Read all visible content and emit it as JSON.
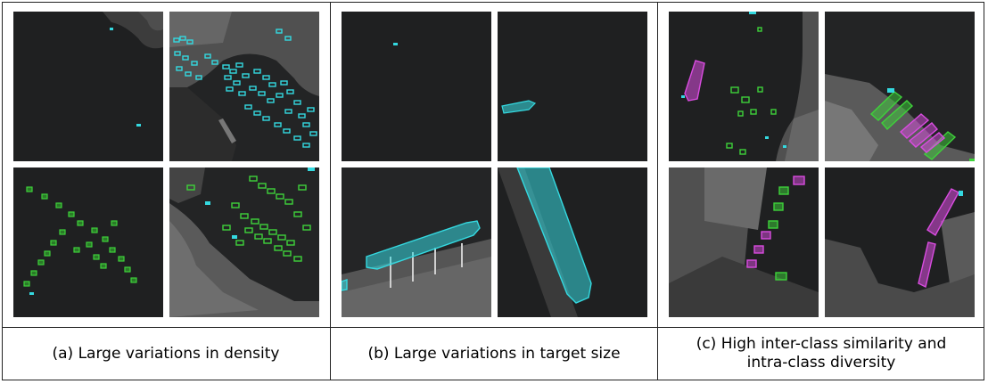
{
  "panels": [
    {
      "caption": "(a) Large variations in density"
    },
    {
      "caption": "(b) Large variations in target size"
    },
    {
      "caption": "(c) High inter-class similarity and\nintra-class diversity"
    }
  ],
  "colors": {
    "class_cyan": "#34d9e0",
    "class_green": "#3ed23a",
    "class_magenta": "#d94ce0",
    "water": "#1e1f20",
    "land": "#4a4a4a"
  }
}
